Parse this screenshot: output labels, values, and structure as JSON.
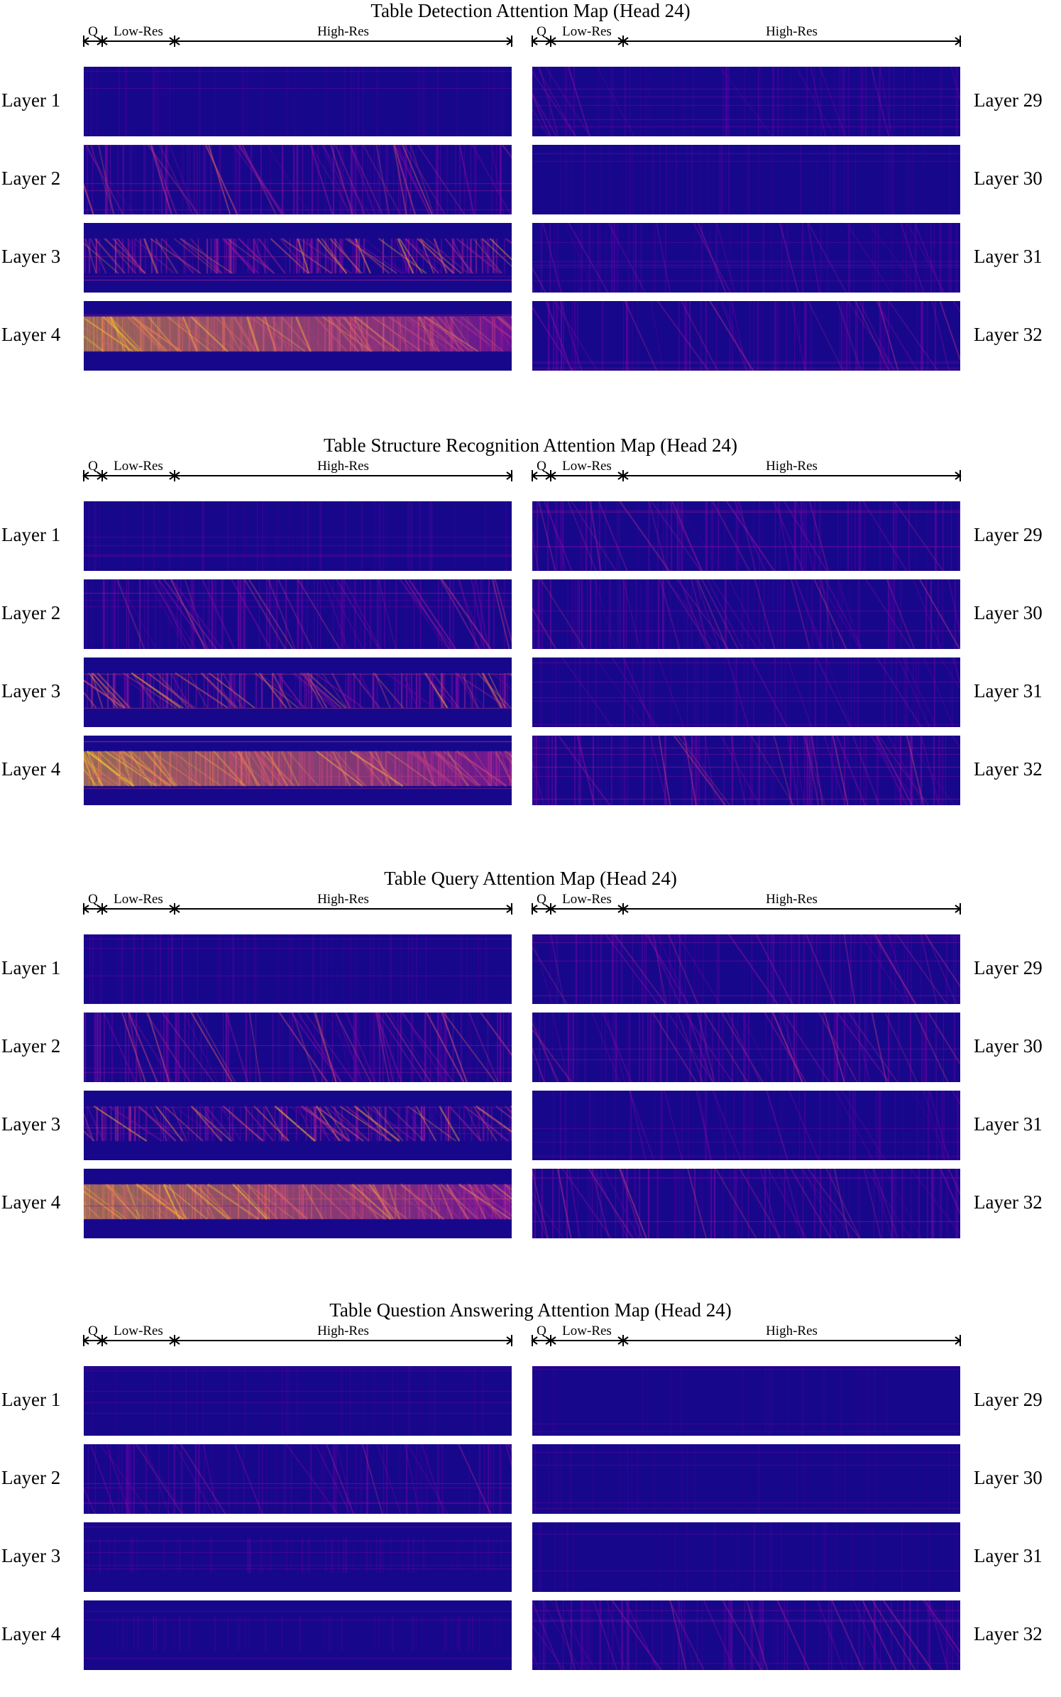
{
  "chart_data": [
    {
      "type": "heatmap",
      "title": "Table Detection Attention Map (Head 24)",
      "segments": [
        "Q",
        "Low-Res",
        "High-Res"
      ],
      "left_layers": [
        "Layer 1",
        "Layer 2",
        "Layer 3",
        "Layer 4"
      ],
      "right_layers": [
        "Layer 29",
        "Layer 30",
        "Layer 31",
        "Layer 32"
      ],
      "colormap": "plasma",
      "left_intensity": [
        0.1,
        0.45,
        0.7,
        0.92
      ],
      "right_intensity": [
        0.18,
        0.12,
        0.22,
        0.28
      ]
    },
    {
      "type": "heatmap",
      "title": "Table Structure Recognition Attention Map (Head 24)",
      "segments": [
        "Q",
        "Low-Res",
        "High-Res"
      ],
      "left_layers": [
        "Layer 1",
        "Layer 2",
        "Layer 3",
        "Layer 4"
      ],
      "right_layers": [
        "Layer 29",
        "Layer 30",
        "Layer 31",
        "Layer 32"
      ],
      "colormap": "plasma",
      "left_intensity": [
        0.12,
        0.42,
        0.68,
        0.9
      ],
      "right_intensity": [
        0.3,
        0.35,
        0.2,
        0.4
      ]
    },
    {
      "type": "heatmap",
      "title": "Table Query Attention Map (Head 24)",
      "segments": [
        "Q",
        "Low-Res",
        "High-Res"
      ],
      "left_layers": [
        "Layer 1",
        "Layer 2",
        "Layer 3",
        "Layer 4"
      ],
      "right_layers": [
        "Layer 29",
        "Layer 30",
        "Layer 31",
        "Layer 32"
      ],
      "colormap": "plasma",
      "left_intensity": [
        0.15,
        0.45,
        0.7,
        0.9
      ],
      "right_intensity": [
        0.28,
        0.35,
        0.18,
        0.38
      ]
    },
    {
      "type": "heatmap",
      "title": "Table Question Answering Attention Map (Head 24)",
      "segments": [
        "Q",
        "Low-Res",
        "High-Res"
      ],
      "left_layers": [
        "Layer 1",
        "Layer 2",
        "Layer 3",
        "Layer 4"
      ],
      "right_layers": [
        "Layer 29",
        "Layer 30",
        "Layer 31",
        "Layer 32"
      ],
      "colormap": "plasma",
      "left_intensity": [
        0.05,
        0.25,
        0.15,
        0.12
      ],
      "right_intensity": [
        0.04,
        0.04,
        0.05,
        0.32
      ]
    }
  ]
}
